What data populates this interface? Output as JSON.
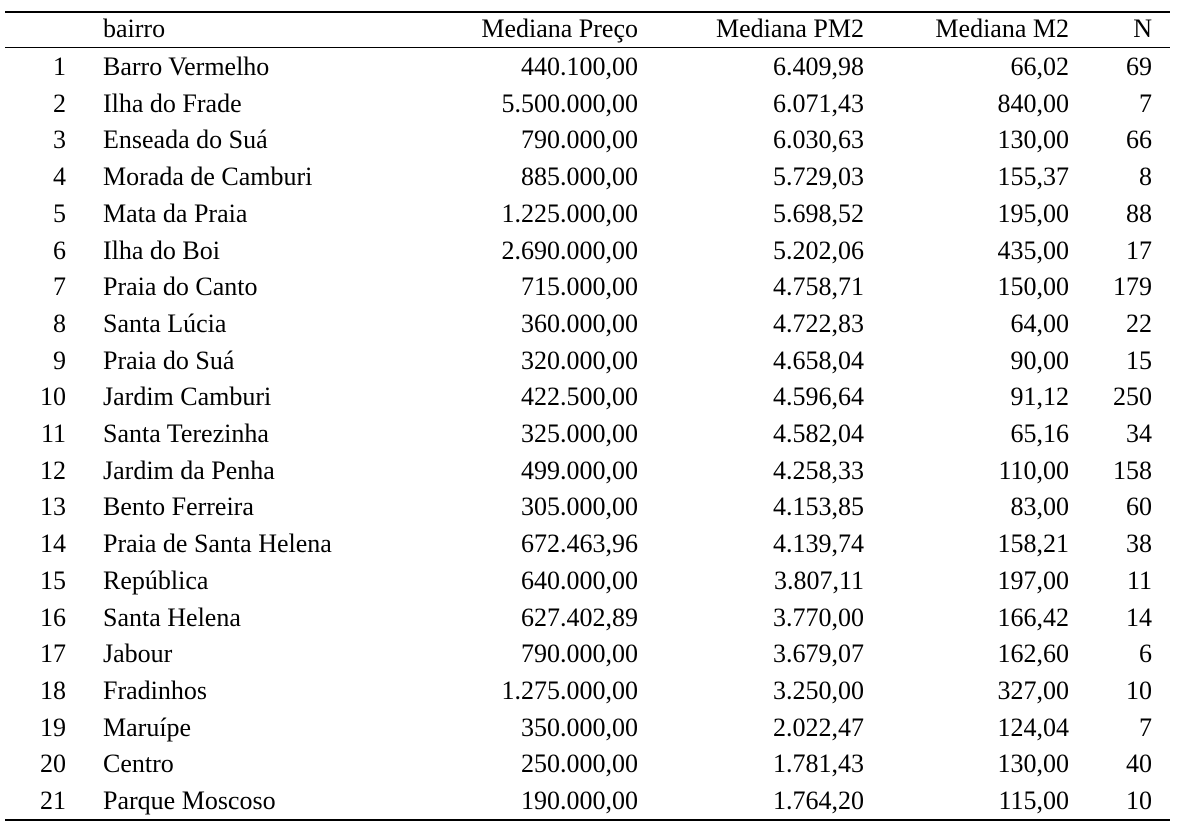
{
  "table": {
    "header": [
      "bairro",
      "Mediana Preço",
      "Mediana PM2",
      "Mediana M2",
      "N"
    ],
    "rows": [
      [
        1,
        "Barro Vermelho",
        "440.100,00",
        "6.409,98",
        "66,02",
        69
      ],
      [
        2,
        "Ilha do Frade",
        "5.500.000,00",
        "6.071,43",
        "840,00",
        7
      ],
      [
        3,
        "Enseada do Suá",
        "790.000,00",
        "6.030,63",
        "130,00",
        66
      ],
      [
        4,
        "Morada de Camburi",
        "885.000,00",
        "5.729,03",
        "155,37",
        8
      ],
      [
        5,
        "Mata da Praia",
        "1.225.000,00",
        "5.698,52",
        "195,00",
        88
      ],
      [
        6,
        "Ilha do Boi",
        "2.690.000,00",
        "5.202,06",
        "435,00",
        17
      ],
      [
        7,
        "Praia do Canto",
        "715.000,00",
        "4.758,71",
        "150,00",
        179
      ],
      [
        8,
        "Santa Lúcia",
        "360.000,00",
        "4.722,83",
        "64,00",
        22
      ],
      [
        9,
        "Praia do Suá",
        "320.000,00",
        "4.658,04",
        "90,00",
        15
      ],
      [
        10,
        "Jardim Camburi",
        "422.500,00",
        "4.596,64",
        "91,12",
        250
      ],
      [
        11,
        "Santa Terezinha",
        "325.000,00",
        "4.582,04",
        "65,16",
        34
      ],
      [
        12,
        "Jardim da Penha",
        "499.000,00",
        "4.258,33",
        "110,00",
        158
      ],
      [
        13,
        "Bento Ferreira",
        "305.000,00",
        "4.153,85",
        "83,00",
        60
      ],
      [
        14,
        "Praia de Santa Helena",
        "672.463,96",
        "4.139,74",
        "158,21",
        38
      ],
      [
        15,
        "República",
        "640.000,00",
        "3.807,11",
        "197,00",
        11
      ],
      [
        16,
        "Santa Helena",
        "627.402,89",
        "3.770,00",
        "166,42",
        14
      ],
      [
        17,
        "Jabour",
        "790.000,00",
        "3.679,07",
        "162,60",
        6
      ],
      [
        18,
        "Fradinhos",
        "1.275.000,00",
        "3.250,00",
        "327,00",
        10
      ],
      [
        19,
        "Maruípe",
        "350.000,00",
        "2.022,47",
        "124,04",
        7
      ],
      [
        20,
        "Centro",
        "250.000,00",
        "1.781,43",
        "130,00",
        40
      ],
      [
        21,
        "Parque Moscoso",
        "190.000,00",
        "1.764,20",
        "115,00",
        10
      ]
    ]
  }
}
